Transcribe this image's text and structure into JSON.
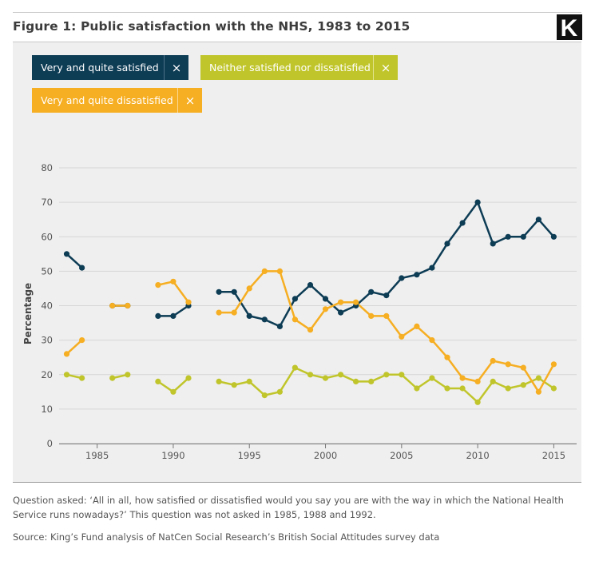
{
  "header": {
    "title": "Figure 1: Public satisfaction with the NHS, 1983 to 2015",
    "logo_letter": "K"
  },
  "legend": [
    {
      "label": "Very and quite satisfied",
      "close": "×",
      "color": "#0d3c55"
    },
    {
      "label": "Neither satisfied nor dissatisfied",
      "close": "×",
      "color": "#c0c52b"
    },
    {
      "label": "Very and quite dissatisfied",
      "close": "×",
      "color": "#f6ae22"
    }
  ],
  "chart_data": {
    "type": "line",
    "title": "Figure 1: Public satisfaction with the NHS, 1983 to 2015",
    "xlabel": "",
    "ylabel": "Percentage",
    "xlim": [
      1982.5,
      2016.5
    ],
    "ylim": [
      0,
      80
    ],
    "yticks": [
      0,
      10,
      20,
      30,
      40,
      50,
      60,
      70,
      80
    ],
    "xticks": [
      1985,
      1990,
      1995,
      2000,
      2005,
      2010,
      2015
    ],
    "grid": "horizontal",
    "x": [
      1983,
      1984,
      1985,
      1986,
      1987,
      1988,
      1989,
      1990,
      1991,
      1992,
      1993,
      1994,
      1995,
      1996,
      1997,
      1998,
      1999,
      2000,
      2001,
      2002,
      2003,
      2004,
      2005,
      2006,
      2007,
      2008,
      2009,
      2010,
      2011,
      2012,
      2013,
      2014,
      2015
    ],
    "series": [
      {
        "name": "Very and quite satisfied",
        "color": "#0d3c55",
        "values": [
          55,
          51,
          null,
          40,
          40,
          null,
          37,
          37,
          40,
          null,
          44,
          44,
          37,
          36,
          34,
          42,
          46,
          42,
          38,
          40,
          44,
          43,
          48,
          49,
          51,
          58,
          64,
          70,
          58,
          60,
          60,
          65,
          60
        ]
      },
      {
        "name": "Neither satisfied nor dissatisfied",
        "color": "#c0c52b",
        "values": [
          20,
          19,
          null,
          19,
          20,
          null,
          18,
          15,
          19,
          null,
          18,
          17,
          18,
          14,
          15,
          22,
          20,
          19,
          20,
          18,
          18,
          20,
          20,
          16,
          19,
          16,
          16,
          12,
          18,
          16,
          17,
          19,
          16
        ]
      },
      {
        "name": "Very and quite dissatisfied",
        "color": "#f6ae22",
        "values": [
          26,
          30,
          null,
          40,
          40,
          null,
          46,
          47,
          41,
          null,
          38,
          38,
          45,
          50,
          50,
          36,
          33,
          39,
          41,
          41,
          37,
          37,
          31,
          34,
          30,
          25,
          19,
          18,
          24,
          23,
          22,
          15,
          23
        ]
      }
    ]
  },
  "notes": {
    "question": "Question asked: ‘All in all, how satisfied or dissatisfied would you say you are with the way in which the National Health Service runs nowadays?’ This question was not asked in 1985, 1988 and 1992.",
    "source": "Source: King’s Fund analysis of NatCen Social Research’s British Social Attitudes survey data"
  }
}
